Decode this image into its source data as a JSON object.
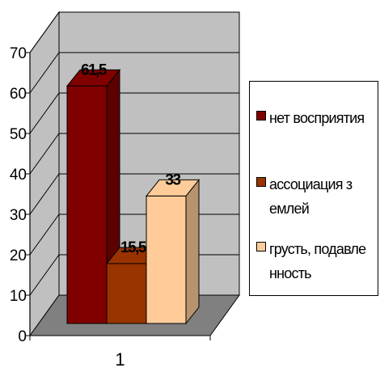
{
  "chart_data": {
    "type": "bar",
    "categories": [
      "1"
    ],
    "series": [
      {
        "name": "нет восприятия",
        "values": [
          61.5
        ],
        "label": "61,5",
        "color": "#800000"
      },
      {
        "name": "ассоциация землей",
        "values": [
          15.5
        ],
        "label": "15,5",
        "color": "#993300"
      },
      {
        "name": "грусть, подавленность",
        "values": [
          33
        ],
        "label": "33",
        "color": "#FFCC99"
      }
    ],
    "ylim": [
      0,
      70
    ],
    "yticks": [
      "0",
      "10",
      "20",
      "30",
      "40",
      "50",
      "60",
      "70"
    ],
    "grid": true,
    "three_d": true,
    "legend_position": "right",
    "colors": {
      "wall": "#C0C0C0",
      "floor": "#808080",
      "grid": "#000000"
    }
  }
}
